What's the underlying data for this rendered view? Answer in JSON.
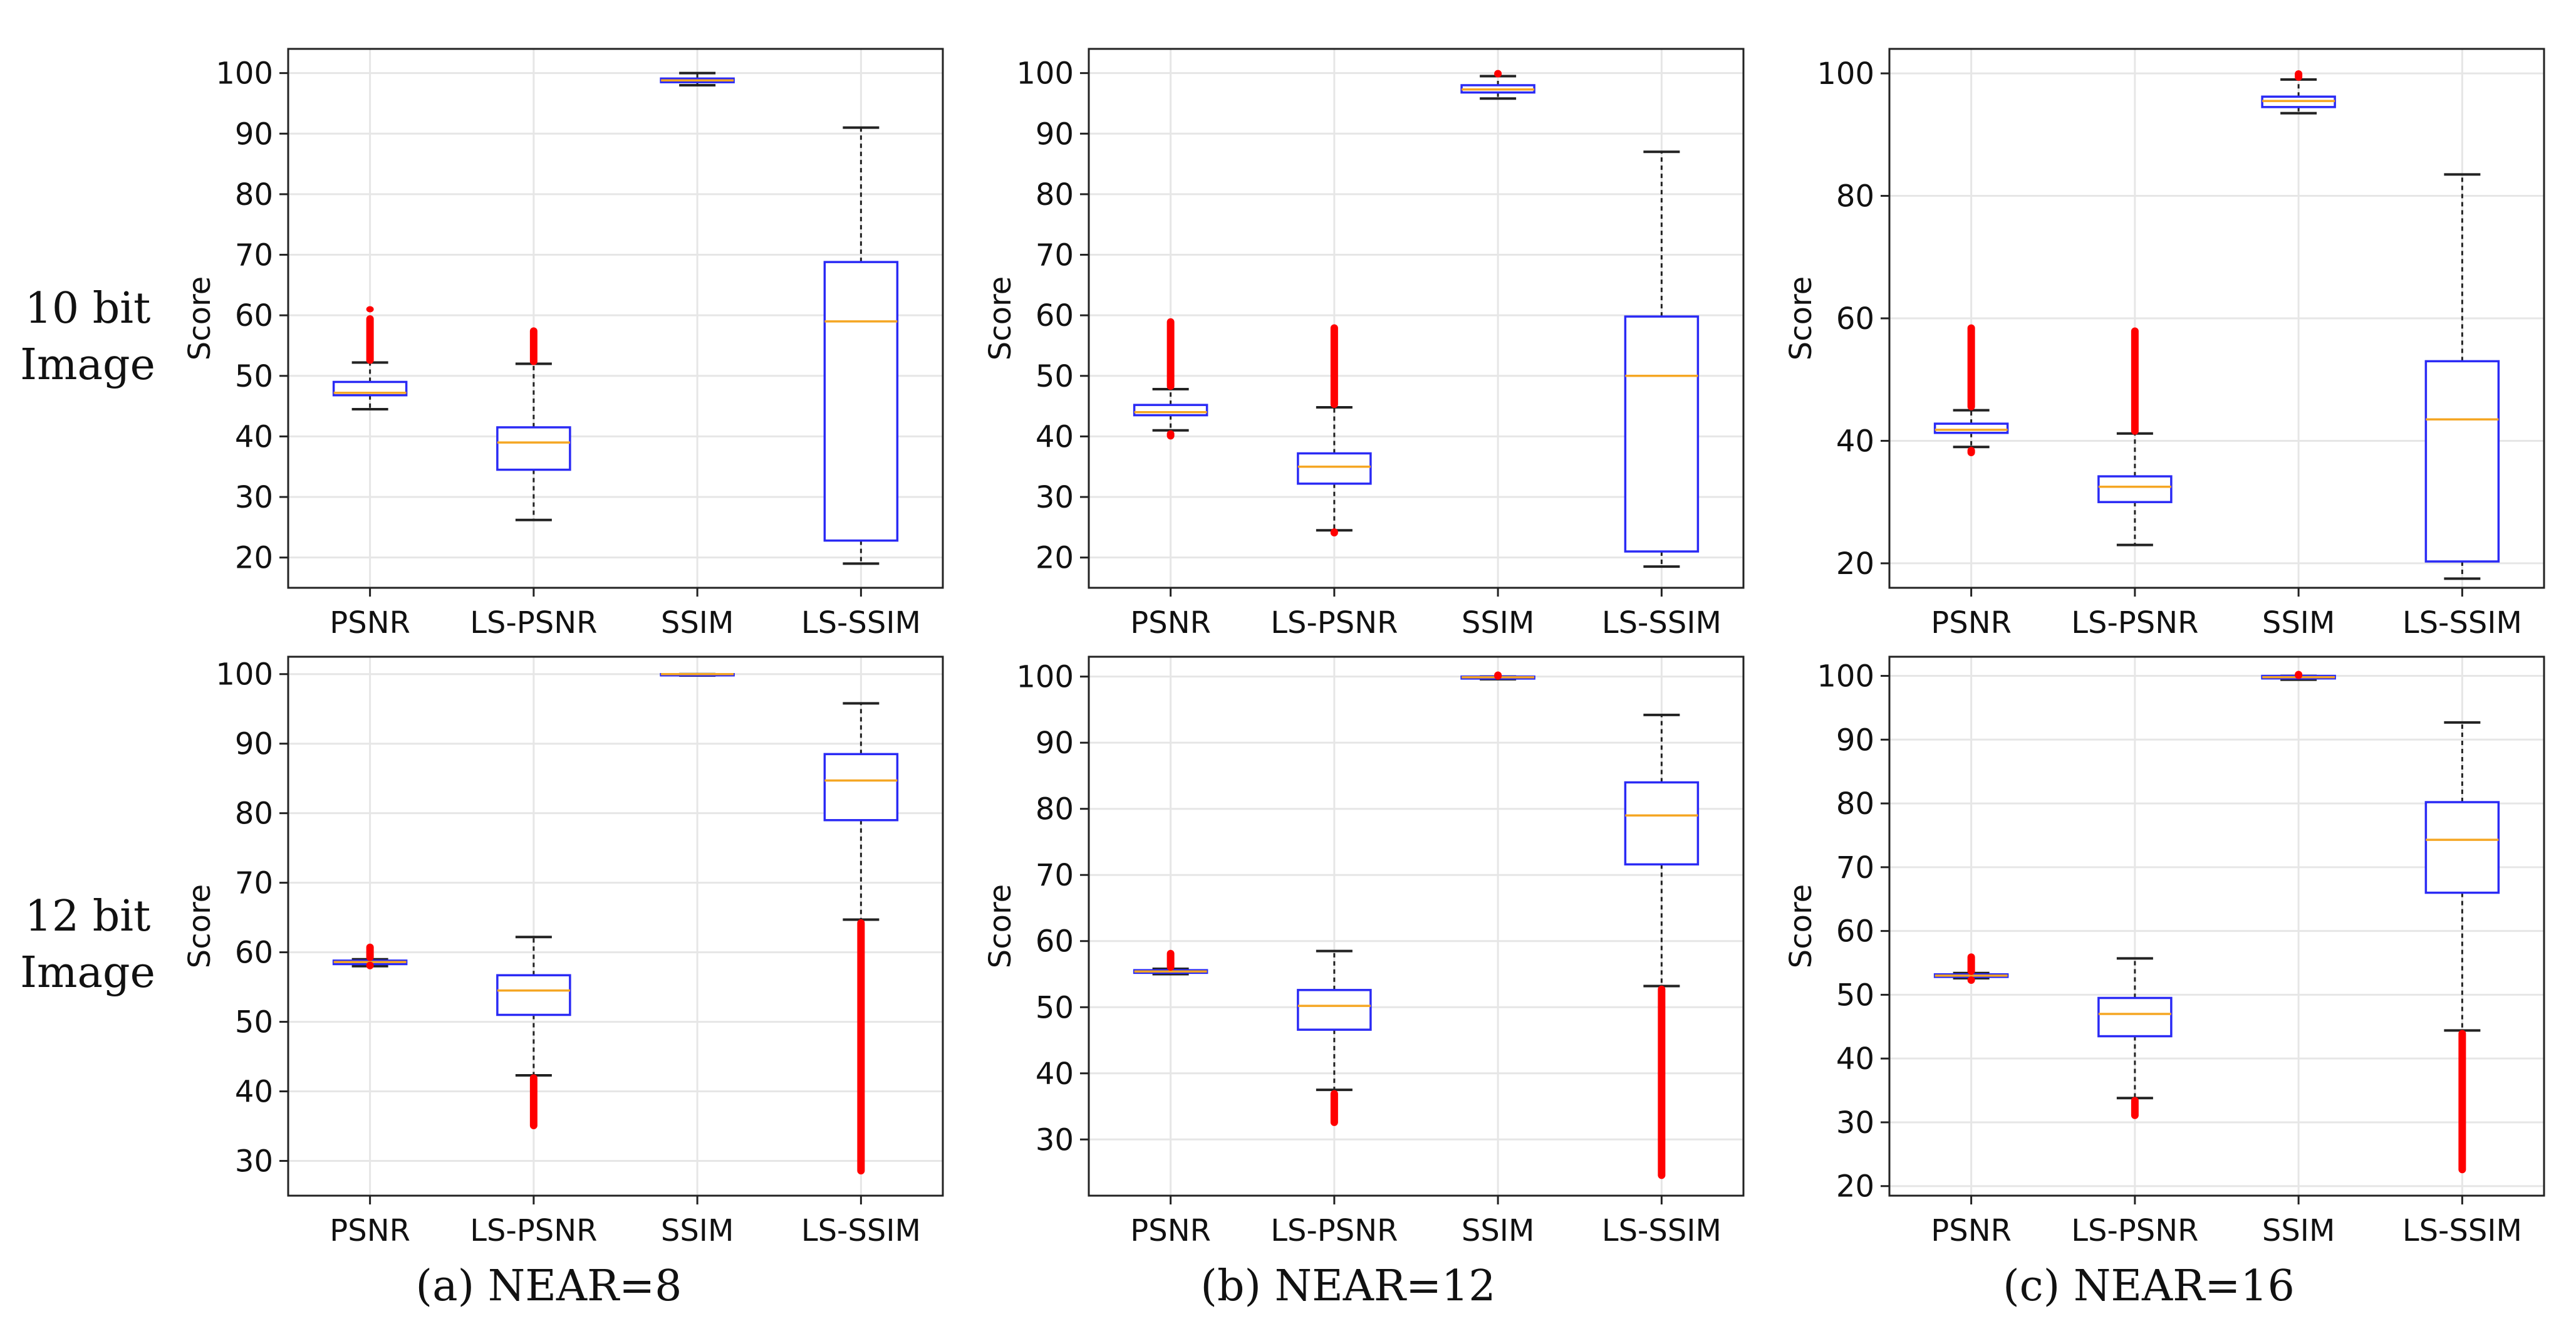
{
  "figure": {
    "row_labels": [
      {
        "line1": "10 bit",
        "line2": "Image"
      },
      {
        "line1": "12 bit",
        "line2": "Image"
      }
    ],
    "column_captions": [
      "(a) NEAR=8",
      "(b) NEAR=12",
      "(c) NEAR=16"
    ]
  },
  "colors": {
    "box": "#2a2af5",
    "median": "#f5a623",
    "whisker": "#222222",
    "outlier": "#ff0000",
    "grid": "#e6e6e6",
    "axes": "#222222"
  },
  "chart_data": [
    {
      "id": "p10_near8",
      "type": "box",
      "row": 0,
      "col": 0,
      "ylabel": "Score",
      "ylim": [
        15,
        104
      ],
      "yticks": [
        20,
        30,
        40,
        50,
        60,
        70,
        80,
        90,
        100
      ],
      "categories": [
        "PSNR",
        "LS-PSNR",
        "SSIM",
        "LS-SSIM"
      ],
      "boxes": [
        {
          "whislo": 44.5,
          "q1": 46.8,
          "med": 47.2,
          "q3": 49.0,
          "whishi": 52.2,
          "fliers": [
            [
              52.5,
              59.5
            ],
            [
              61,
              61
            ]
          ]
        },
        {
          "whislo": 26.2,
          "q1": 34.5,
          "med": 39.0,
          "q3": 41.5,
          "whishi": 52.0,
          "fliers": [
            [
              52.3,
              57.5
            ]
          ]
        },
        {
          "whislo": 98.0,
          "q1": 98.5,
          "med": 98.8,
          "q3": 99.1,
          "whishi": 100.0,
          "fliers": []
        },
        {
          "whislo": 19.0,
          "q1": 22.8,
          "med": 59.0,
          "q3": 68.8,
          "whishi": 91.0,
          "fliers": []
        }
      ]
    },
    {
      "id": "p10_near12",
      "type": "box",
      "row": 0,
      "col": 1,
      "ylabel": "Score",
      "ylim": [
        15,
        104
      ],
      "yticks": [
        20,
        30,
        40,
        50,
        60,
        70,
        80,
        90,
        100
      ],
      "categories": [
        "PSNR",
        "LS-PSNR",
        "SSIM",
        "LS-SSIM"
      ],
      "boxes": [
        {
          "whislo": 41.0,
          "q1": 43.5,
          "med": 44.0,
          "q3": 45.2,
          "whishi": 47.8,
          "fliers": [
            [
              48.2,
              59.0
            ],
            [
              40.0,
              40.5
            ]
          ]
        },
        {
          "whislo": 24.5,
          "q1": 32.2,
          "med": 35.0,
          "q3": 37.2,
          "whishi": 44.8,
          "fliers": [
            [
              45.2,
              58.0
            ],
            [
              24.0,
              24.3
            ]
          ]
        },
        {
          "whislo": 95.8,
          "q1": 96.8,
          "med": 97.3,
          "q3": 98.0,
          "whishi": 99.5,
          "fliers": [
            [
              99.8,
              100.0
            ]
          ]
        },
        {
          "whislo": 18.5,
          "q1": 21.0,
          "med": 50.0,
          "q3": 59.8,
          "whishi": 87.0,
          "fliers": []
        }
      ]
    },
    {
      "id": "p10_near16",
      "type": "box",
      "row": 0,
      "col": 2,
      "ylabel": "Score",
      "ylim": [
        16,
        104
      ],
      "yticks": [
        20,
        40,
        60,
        80,
        100
      ],
      "categories": [
        "PSNR",
        "LS-PSNR",
        "SSIM",
        "LS-SSIM"
      ],
      "boxes": [
        {
          "whislo": 39.0,
          "q1": 41.3,
          "med": 41.8,
          "q3": 42.8,
          "whishi": 45.0,
          "fliers": [
            [
              45.5,
              58.5
            ],
            [
              38.0,
              38.5
            ]
          ]
        },
        {
          "whislo": 23.0,
          "q1": 30.0,
          "med": 32.5,
          "q3": 34.2,
          "whishi": 41.2,
          "fliers": [
            [
              41.5,
              58.0
            ]
          ]
        },
        {
          "whislo": 93.5,
          "q1": 94.5,
          "med": 95.5,
          "q3": 96.2,
          "whishi": 99.0,
          "fliers": [
            [
              99.3,
              100.0
            ]
          ]
        },
        {
          "whislo": 17.5,
          "q1": 20.3,
          "med": 43.5,
          "q3": 53.0,
          "whishi": 83.5,
          "fliers": []
        }
      ]
    },
    {
      "id": "p12_near8",
      "type": "box",
      "row": 1,
      "col": 0,
      "ylabel": "Score",
      "ylim": [
        25,
        102.5
      ],
      "yticks": [
        30,
        40,
        50,
        60,
        70,
        80,
        90,
        100
      ],
      "categories": [
        "PSNR",
        "LS-PSNR",
        "SSIM",
        "LS-SSIM"
      ],
      "boxes": [
        {
          "whislo": 58.0,
          "q1": 58.3,
          "med": 58.6,
          "q3": 58.8,
          "whishi": 59.0,
          "fliers": [
            [
              59.2,
              60.8
            ],
            [
              58.0,
              58.2
            ]
          ]
        },
        {
          "whislo": 42.3,
          "q1": 51.0,
          "med": 54.5,
          "q3": 56.7,
          "whishi": 62.2,
          "fliers": [
            [
              35.0,
              42.0
            ]
          ]
        },
        {
          "whislo": 99.8,
          "q1": 99.9,
          "med": 100.0,
          "q3": 100.0,
          "whishi": 100.0,
          "fliers": []
        },
        {
          "whislo": 64.7,
          "q1": 79.0,
          "med": 84.7,
          "q3": 88.5,
          "whishi": 95.8,
          "fliers": [
            [
              28.5,
              64.3
            ]
          ]
        }
      ]
    },
    {
      "id": "p12_near12",
      "type": "box",
      "row": 1,
      "col": 1,
      "ylabel": "Score",
      "ylim": [
        21.5,
        103
      ],
      "yticks": [
        30,
        40,
        50,
        60,
        70,
        80,
        90,
        100
      ],
      "categories": [
        "PSNR",
        "LS-PSNR",
        "SSIM",
        "LS-SSIM"
      ],
      "boxes": [
        {
          "whislo": 55.0,
          "q1": 55.2,
          "med": 55.4,
          "q3": 55.6,
          "whishi": 55.8,
          "fliers": [
            [
              56.0,
              58.2
            ]
          ]
        },
        {
          "whislo": 37.5,
          "q1": 46.6,
          "med": 50.2,
          "q3": 52.6,
          "whishi": 58.5,
          "fliers": [
            [
              32.5,
              37.0
            ]
          ]
        },
        {
          "whislo": 99.6,
          "q1": 99.7,
          "med": 99.9,
          "q3": 100.0,
          "whishi": 100.0,
          "fliers": [
            [
              100.0,
              100.3
            ]
          ]
        },
        {
          "whislo": 53.2,
          "q1": 71.6,
          "med": 79.0,
          "q3": 84.0,
          "whishi": 94.2,
          "fliers": [
            [
              24.5,
              52.8
            ]
          ]
        }
      ]
    },
    {
      "id": "p12_near16",
      "type": "box",
      "row": 1,
      "col": 2,
      "ylabel": "Score",
      "ylim": [
        18.5,
        103
      ],
      "yticks": [
        20,
        30,
        40,
        50,
        60,
        70,
        80,
        90,
        100
      ],
      "categories": [
        "PSNR",
        "LS-PSNR",
        "SSIM",
        "LS-SSIM"
      ],
      "boxes": [
        {
          "whislo": 52.6,
          "q1": 52.8,
          "med": 53.0,
          "q3": 53.2,
          "whishi": 53.4,
          "fliers": [
            [
              53.6,
              56.0
            ],
            [
              52.2,
              52.4
            ]
          ]
        },
        {
          "whislo": 33.8,
          "q1": 43.5,
          "med": 47.0,
          "q3": 49.5,
          "whishi": 55.7,
          "fliers": [
            [
              31.0,
              33.5
            ]
          ]
        },
        {
          "whislo": 99.4,
          "q1": 99.6,
          "med": 99.8,
          "q3": 100.0,
          "whishi": 100.0,
          "fliers": [
            [
              100.0,
              100.3
            ]
          ]
        },
        {
          "whislo": 44.4,
          "q1": 66.0,
          "med": 74.3,
          "q3": 80.2,
          "whishi": 92.7,
          "fliers": [
            [
              22.5,
              44.0
            ]
          ]
        }
      ]
    }
  ]
}
